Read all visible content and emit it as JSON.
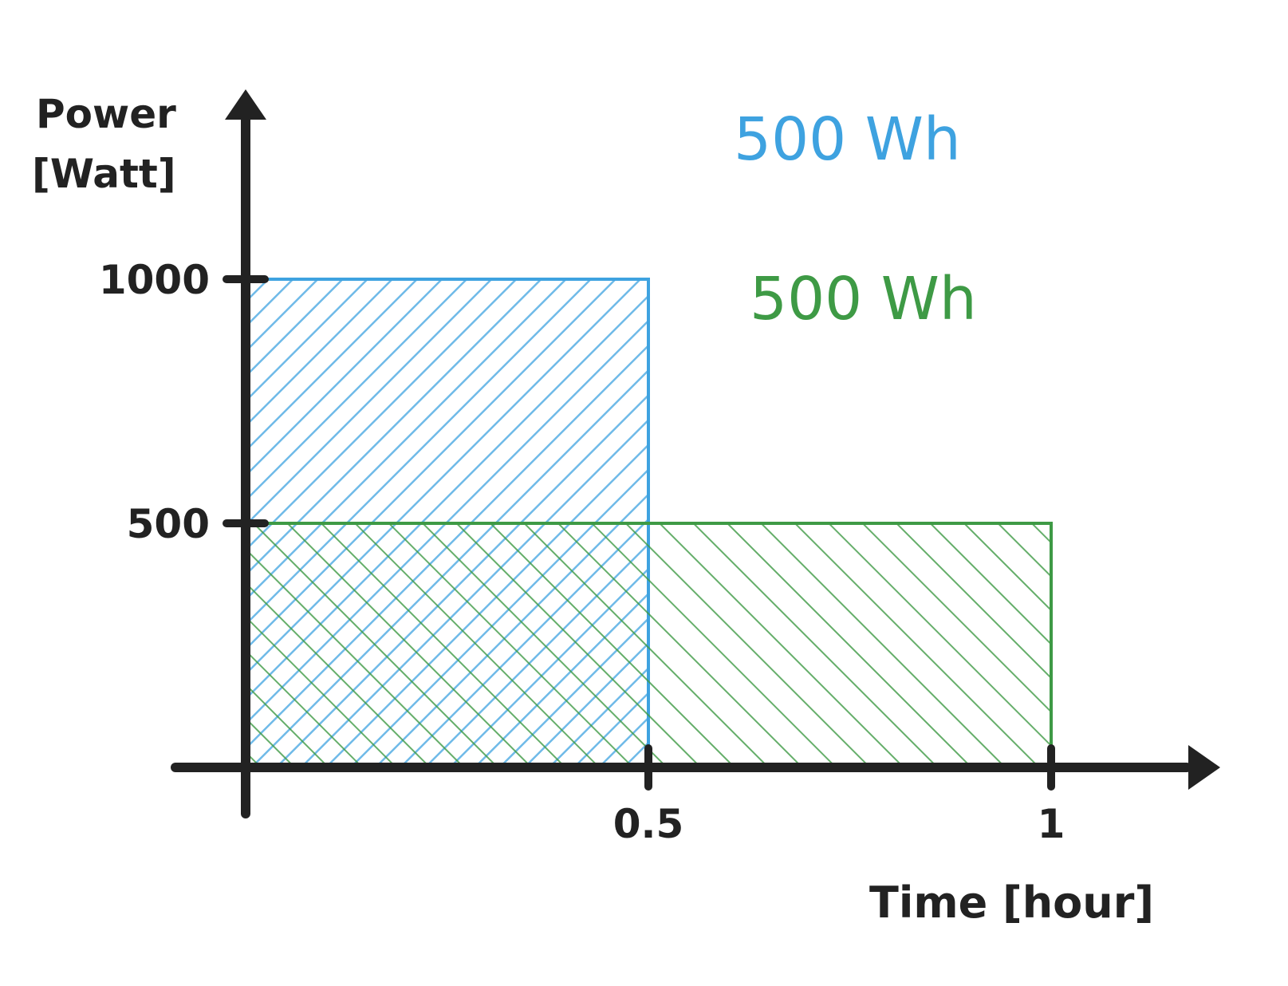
{
  "chart_data": {
    "type": "area",
    "title": "",
    "xlabel": "Time [hour]",
    "ylabel_line1": "Power",
    "ylabel_line2": "[Watt]",
    "xlim": [
      0,
      1
    ],
    "ylim": [
      0,
      1000
    ],
    "x_ticks": [
      {
        "value": 0.5,
        "label": "0.5"
      },
      {
        "value": 1,
        "label": "1"
      }
    ],
    "y_ticks": [
      {
        "value": 500,
        "label": "500"
      },
      {
        "value": 1000,
        "label": "1000"
      }
    ],
    "series": [
      {
        "x_start": 0,
        "x_end": 0.5,
        "power": 1000,
        "color": "#3ea2e0",
        "energy_label": "500 Wh"
      },
      {
        "x_start": 0,
        "x_end": 1,
        "power": 500,
        "color": "#3e9a45",
        "energy_label": "500 Wh"
      }
    ],
    "grid": false,
    "legend": "none"
  }
}
